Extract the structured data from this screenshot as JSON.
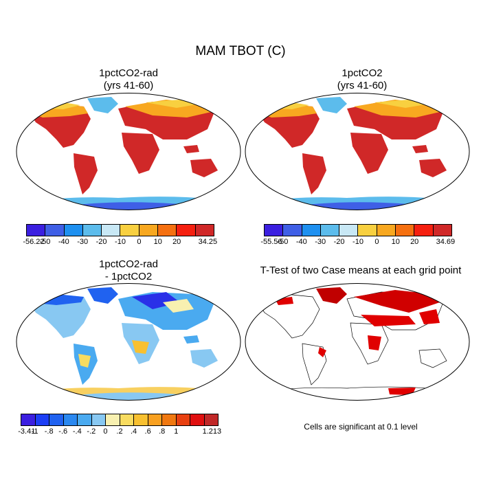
{
  "main_title": "MAM TBOT (C)",
  "panels": [
    {
      "title": "1pctCO2-rad\n(yrs 41-60)",
      "colorbar": {
        "colors": [
          "#3b1fe0",
          "#3f5fe6",
          "#1e90f0",
          "#5cbcec",
          "#c8e8f5",
          "#f8d040",
          "#f8a820",
          "#f57010",
          "#f52010",
          "#d02828"
        ],
        "labels": [
          "-56.22",
          "-50",
          "-40",
          "-30",
          "-20",
          "-10",
          "0",
          "10",
          "20",
          "34.25"
        ]
      }
    },
    {
      "title": "1pctCO2\n(yrs 41-60)",
      "colorbar": {
        "colors": [
          "#3b1fe0",
          "#3f5fe6",
          "#1e90f0",
          "#5cbcec",
          "#c8e8f5",
          "#f8d040",
          "#f8a820",
          "#f57010",
          "#f52010",
          "#d02828"
        ],
        "labels": [
          "-55.56",
          "-50",
          "-40",
          "-30",
          "-20",
          "-10",
          "0",
          "10",
          "20",
          "34.69"
        ]
      }
    },
    {
      "title": "1pctCO2-rad\n- 1pctCO2",
      "colorbar": {
        "colors": [
          "#3b1fe0",
          "#1c3ef5",
          "#2062f0",
          "#2a88f0",
          "#4aaaf0",
          "#88c8f2",
          "#f8f0b0",
          "#f8dc60",
          "#f8c030",
          "#f8a020",
          "#f07810",
          "#e84010",
          "#e01010",
          "#c02828"
        ],
        "labels": [
          "-3.41",
          "-1",
          "-.8",
          "-.6",
          "-.4",
          "-.2",
          "0",
          ".2",
          ".4",
          ".6",
          ".8",
          "1",
          "1.213"
        ]
      }
    },
    {
      "title": "T-Test of two Case means at each grid point",
      "note": "Cells are significant at 0.1 level",
      "colors": {
        "significant": "#e00000"
      }
    }
  ]
}
